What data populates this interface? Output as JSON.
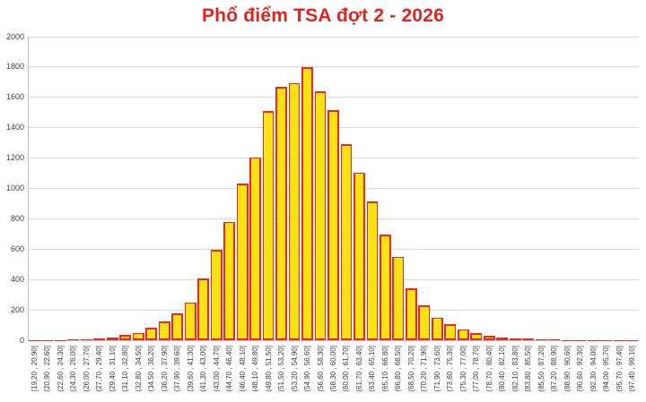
{
  "title": "Phổ điểm TSA đợt 2 - 2026",
  "chart_data": {
    "type": "bar",
    "title": "Phổ điểm TSA đợt 2 - 2026",
    "xlabel": "",
    "ylabel": "",
    "ylim": [
      0,
      2000
    ],
    "yticks": [
      0,
      200,
      400,
      600,
      800,
      1000,
      1200,
      1400,
      1600,
      1800,
      2000
    ],
    "grid": true,
    "legend": false,
    "bin_width": 1.7,
    "categories": [
      "[19,20 , 20,90]",
      "(20,90 , 22,60]",
      "(22,60 , 24,30]",
      "(24,30 , 26,00]",
      "(26,00 , 27,70]",
      "(27,70 , 29,40]",
      "(29,40 , 31,10]",
      "(31,10 , 32,80]",
      "(32,80 , 34,50]",
      "(34,50 , 36,20]",
      "(36,20 , 37,90]",
      "(37,90 , 39,60]",
      "(39,60 , 41,30]",
      "(41,30 , 43,00]",
      "(43,00 , 44,70]",
      "(44,70 , 46,40]",
      "(46,40 , 48,10]",
      "(48,10 , 49,80]",
      "(49,80 , 51,50]",
      "(51,50 , 53,20]",
      "(53,20 , 54,90]",
      "(54,90 , 56,60]",
      "(56,60 , 58,30]",
      "(58,30 , 60,00]",
      "(60,00 , 61,70]",
      "(61,70 , 63,40]",
      "(63,40 , 65,10]",
      "(65,10 , 66,80]",
      "(66,80 , 68,50]",
      "(68,50 , 70,20]",
      "(70,20 , 71,90]",
      "(71,90 , 73,60]",
      "(73,60 , 75,30]",
      "(75,30 , 77,00]",
      "(77,00 , 78,70]",
      "(78,70 , 80,40]",
      "(80,40 , 82,10]",
      "(82,10 , 83,80]",
      "(83,80 , 85,50]",
      "(85,50 , 87,20]",
      "(87,20 , 88,90]",
      "(88,90 , 90,60]",
      "(90,60 , 92,30]",
      "(92,30 , 94,00]",
      "(94,00 , 95,70]",
      "(95,70 , 97,40]",
      "(97,40 , 99,10]"
    ],
    "values": [
      2,
      2,
      3,
      5,
      8,
      12,
      20,
      33,
      50,
      80,
      122,
      178,
      250,
      405,
      595,
      780,
      1030,
      1205,
      1510,
      1670,
      1695,
      1800,
      1640,
      1515,
      1290,
      1105,
      915,
      695,
      550,
      340,
      230,
      150,
      105,
      72,
      45,
      30,
      20,
      14,
      10,
      7,
      4,
      3,
      2,
      2,
      1,
      1,
      1
    ],
    "colors": {
      "title": "#DF2521",
      "bar_fill": "#F8E213",
      "bar_border": "#EE2624",
      "gridline": "#D9D9D9",
      "axis_line": "#BFBFBF",
      "tick_label": "#404040",
      "background": "#FFFFFF"
    }
  }
}
